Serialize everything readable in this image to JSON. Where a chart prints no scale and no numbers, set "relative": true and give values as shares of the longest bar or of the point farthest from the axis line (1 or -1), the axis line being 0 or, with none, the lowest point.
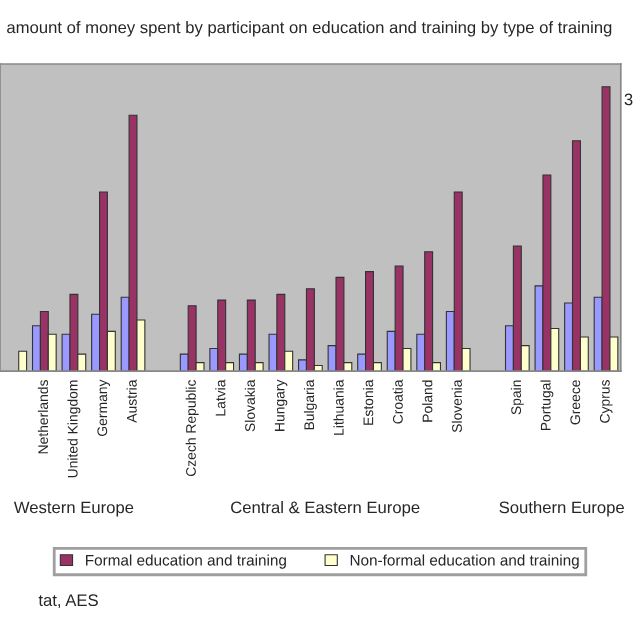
{
  "chart_data": {
    "type": "bar",
    "relative": true,
    "title": "amount of money spent by participant on education and training by type of training",
    "categories": [
      null,
      "Netherlands",
      "United Kingdom",
      "Germany",
      "Austria",
      null,
      "Czech Republic",
      "Latvia",
      "Slovakia",
      "Hungary",
      "Bulgaria",
      "Lithuania",
      "Estonia",
      "Croatia",
      "Poland",
      "Slovenia",
      null,
      "Spain",
      "Portugal",
      "Greece",
      "Cyprus"
    ],
    "series": [
      {
        "color": "#9999ff",
        "values": [
          null,
          0.16,
          0.13,
          0.2,
          0.26,
          null,
          0.06,
          0.08,
          0.06,
          0.13,
          0.04,
          0.09,
          0.06,
          0.14,
          0.13,
          0.21,
          null,
          0.16,
          0.3,
          0.24,
          0.26
        ]
      },
      {
        "name": "Formal education and training",
        "color": "#993366",
        "values": [
          null,
          0.21,
          0.27,
          0.63,
          0.9,
          null,
          0.23,
          0.25,
          0.25,
          0.27,
          0.29,
          0.33,
          0.35,
          0.37,
          0.42,
          0.63,
          null,
          0.44,
          0.69,
          0.81,
          1
        ]
      },
      {
        "name": "Non-formal education and training",
        "color": "#ffffcc",
        "values": [
          0.07,
          0.13,
          0.06,
          0.14,
          0.18,
          null,
          0.03,
          0.03,
          0.03,
          0.07,
          0.02,
          0.03,
          0.03,
          0.08,
          0.03,
          0.08,
          null,
          0.09,
          0.15,
          0.12,
          0.12
        ]
      }
    ],
    "annotations": [
      "Western Europe",
      "Central & Eastern Europe",
      "Southern Europe",
      "tat, AES",
      "3"
    ],
    "legend": "bottom"
  }
}
